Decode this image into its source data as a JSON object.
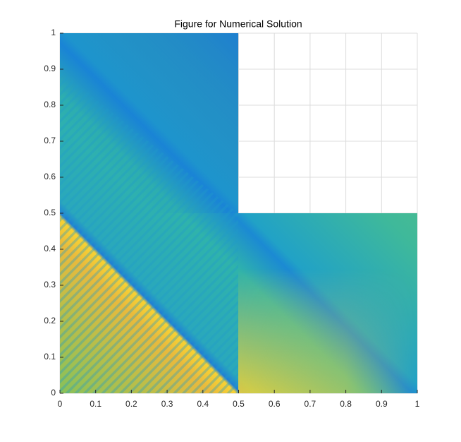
{
  "chart_data": {
    "type": "heatmap",
    "title": "Figure for Numerical Solution",
    "xlim": [
      0,
      1
    ],
    "ylim": [
      0,
      1
    ],
    "xticks": [
      0,
      0.1,
      0.2,
      0.3,
      0.4,
      0.5,
      0.6,
      0.7,
      0.8,
      0.9,
      1
    ],
    "yticks": [
      0,
      0.1,
      0.2,
      0.3,
      0.4,
      0.5,
      0.6,
      0.7,
      0.8,
      0.9,
      1
    ],
    "grid": true
  }
}
